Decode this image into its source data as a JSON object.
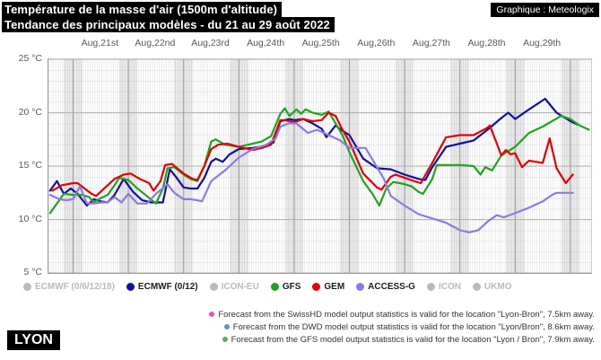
{
  "header": {
    "title_line1": "Température de la masse d'air (1500m d'altitude)",
    "title_line2": "Tendance des principaux modèles - du 21 au 29 août 2022",
    "badge": "Graphique : Meteologix"
  },
  "location_badge": "LYON",
  "legend": [
    {
      "label": "ECMWF (0/6/12/18)",
      "color": "#b9b9c2",
      "active": false
    },
    {
      "label": "ECMWF (0/12)",
      "color": "#11119e",
      "active": true
    },
    {
      "label": "ICON-EU",
      "color": "#b9b9c2",
      "active": false
    },
    {
      "label": "GFS",
      "color": "#1ea51e",
      "active": true
    },
    {
      "label": "GEM",
      "color": "#e60000",
      "active": true
    },
    {
      "label": "ACCESS-G",
      "color": "#8d79e6",
      "active": true
    },
    {
      "label": "ICON",
      "color": "#b9b9c2",
      "active": false
    },
    {
      "label": "UKMO",
      "color": "#b9b9c2",
      "active": false
    }
  ],
  "footnotes": [
    {
      "bullet_color": "#e455c4",
      "text": "Forecast from the SwissHD model output statistics is valid for the location \"Lyon-Bron\", 7.5km away."
    },
    {
      "bullet_color": "#6b8fc3",
      "text": "Forecast from the DWD model output statistics is valid for the location \"Lyon/Bron\", 8.6km away."
    },
    {
      "bullet_color": "#5aa96b",
      "text": "Forecast from the GFS model output statistics is valid for the location \"Lyon / Bron\", 7.9km away."
    }
  ],
  "chart_data": {
    "type": "line",
    "title": "Température de la masse d'air (1500m d'altitude) - Tendance des principaux modèles - du 21 au 29 août 2022",
    "x_unit": "hours since Aug 21 00:00",
    "t_range": [
      -10.7,
      225.0
    ],
    "ylim": [
      5,
      25
    ],
    "grid": "on",
    "legend_position": "bottom",
    "night_band_halfwidth_hours": 4,
    "day_label_noons": [
      12,
      36,
      60,
      84,
      108,
      132,
      156,
      180,
      204
    ],
    "day_labels": [
      "Aug,21st",
      "Aug,22nd",
      "Aug,23rd",
      "Aug,24th",
      "Aug,25th",
      "Aug,26th",
      "Aug,27th",
      "Aug,28th",
      "Aug,29th"
    ],
    "ytick_values": [
      25,
      20,
      15,
      10,
      5
    ],
    "ytick_labels": [
      "25 °C",
      "20 °C",
      "15 °C",
      "10 °C",
      "5 °C"
    ],
    "series": [
      {
        "name": "ECMWF (0/12)",
        "color": "#11119e",
        "points": [
          [
            -10,
            12.7
          ],
          [
            -7,
            13.6
          ],
          [
            -4,
            12.4
          ],
          [
            -1,
            12.9
          ],
          [
            2,
            12.4
          ],
          [
            6,
            11.3
          ],
          [
            9,
            11.9
          ],
          [
            12,
            11.7
          ],
          [
            15,
            11.6
          ],
          [
            18,
            12.3
          ],
          [
            22,
            13.8
          ],
          [
            26,
            12.6
          ],
          [
            30,
            11.8
          ],
          [
            34,
            11.6
          ],
          [
            39,
            11.6
          ],
          [
            42,
            14.7
          ],
          [
            45,
            13.9
          ],
          [
            48,
            13.0
          ],
          [
            51,
            12.9
          ],
          [
            54,
            12.9
          ],
          [
            57,
            13.9
          ],
          [
            60,
            15.4
          ],
          [
            62,
            15.7
          ],
          [
            65,
            15.4
          ],
          [
            68,
            16.1
          ],
          [
            72,
            16.6
          ],
          [
            78,
            16.7
          ],
          [
            84,
            16.9
          ],
          [
            87,
            17.2
          ],
          [
            90,
            19.2
          ],
          [
            94,
            19.4
          ],
          [
            96,
            19.3
          ],
          [
            100,
            19.4
          ],
          [
            104,
            19.0
          ],
          [
            108,
            18.5
          ],
          [
            110,
            17.7
          ],
          [
            114,
            18.8
          ],
          [
            117,
            18.3
          ],
          [
            120,
            17.9
          ],
          [
            126,
            15.7
          ],
          [
            132,
            14.8
          ],
          [
            138,
            14.7
          ],
          [
            144,
            14.2
          ],
          [
            150,
            13.8
          ],
          [
            153,
            13.7
          ],
          [
            156,
            14.9
          ],
          [
            162,
            16.8
          ],
          [
            168,
            17.1
          ],
          [
            174,
            17.4
          ],
          [
            180,
            18.4
          ],
          [
            186,
            19.5
          ],
          [
            189,
            20.0
          ],
          [
            192,
            19.4
          ],
          [
            198,
            20.3
          ],
          [
            205,
            21.3
          ],
          [
            210,
            20.0
          ],
          [
            216,
            19.2
          ],
          [
            219,
            18.9
          ]
        ]
      },
      {
        "name": "GFS",
        "color": "#1ea51e",
        "points": [
          [
            -10,
            10.6
          ],
          [
            -7,
            11.5
          ],
          [
            -4,
            12.4
          ],
          [
            0,
            12.3
          ],
          [
            4,
            12.3
          ],
          [
            7,
            12.1
          ],
          [
            9,
            11.6
          ],
          [
            12,
            12.0
          ],
          [
            15,
            12.3
          ],
          [
            18,
            13.2
          ],
          [
            20,
            13.9
          ],
          [
            24,
            13.7
          ],
          [
            28,
            12.9
          ],
          [
            32,
            12.2
          ],
          [
            36,
            11.5
          ],
          [
            39,
            12.9
          ],
          [
            41,
            14.8
          ],
          [
            44,
            14.9
          ],
          [
            48,
            14.2
          ],
          [
            51,
            13.8
          ],
          [
            54,
            13.6
          ],
          [
            57,
            15.0
          ],
          [
            60,
            17.3
          ],
          [
            62,
            17.5
          ],
          [
            66,
            17.0
          ],
          [
            72,
            16.8
          ],
          [
            76,
            17.0
          ],
          [
            82,
            17.3
          ],
          [
            86,
            17.8
          ],
          [
            90,
            19.9
          ],
          [
            92,
            20.4
          ],
          [
            94,
            19.7
          ],
          [
            97,
            20.3
          ],
          [
            99,
            19.9
          ],
          [
            101,
            20.3
          ],
          [
            104,
            20.0
          ],
          [
            108,
            19.8
          ],
          [
            111,
            20.1
          ],
          [
            114,
            19.0
          ],
          [
            117,
            17.9
          ],
          [
            120,
            16.3
          ],
          [
            126,
            13.6
          ],
          [
            130,
            12.4
          ],
          [
            133,
            11.3
          ],
          [
            136,
            12.9
          ],
          [
            139,
            13.5
          ],
          [
            142,
            13.4
          ],
          [
            144,
            13.3
          ],
          [
            147,
            13.1
          ],
          [
            150,
            12.6
          ],
          [
            152,
            12.4
          ],
          [
            156,
            13.8
          ],
          [
            158,
            15.1
          ],
          [
            162,
            15.1
          ],
          [
            168,
            15.1
          ],
          [
            174,
            15.0
          ],
          [
            177,
            14.2
          ],
          [
            179,
            14.9
          ],
          [
            182,
            14.6
          ],
          [
            186,
            16.0
          ],
          [
            192,
            16.8
          ],
          [
            198,
            18.1
          ],
          [
            204,
            18.7
          ],
          [
            208,
            19.2
          ],
          [
            212,
            19.7
          ],
          [
            216,
            19.4
          ],
          [
            220,
            18.8
          ],
          [
            224,
            18.4
          ]
        ]
      },
      {
        "name": "GEM",
        "color": "#e60000",
        "points": [
          [
            -9,
            12.7
          ],
          [
            -5,
            13.2
          ],
          [
            0,
            13.4
          ],
          [
            2,
            13.4
          ],
          [
            5,
            12.9
          ],
          [
            8,
            12.4
          ],
          [
            10,
            12.2
          ],
          [
            14,
            13.0
          ],
          [
            18,
            13.8
          ],
          [
            22,
            14.2
          ],
          [
            25,
            14.3
          ],
          [
            29,
            13.8
          ],
          [
            33,
            13.4
          ],
          [
            35,
            12.7
          ],
          [
            38,
            13.6
          ],
          [
            40,
            15.1
          ],
          [
            43,
            15.2
          ],
          [
            48,
            14.3
          ],
          [
            52,
            13.8
          ],
          [
            54,
            13.7
          ],
          [
            57,
            15.0
          ],
          [
            60,
            16.6
          ],
          [
            63,
            17.0
          ],
          [
            67,
            17.1
          ],
          [
            72,
            16.8
          ],
          [
            78,
            16.5
          ],
          [
            82,
            16.7
          ],
          [
            86,
            17.0
          ],
          [
            90,
            19.3
          ],
          [
            92,
            19.3
          ],
          [
            96,
            19.1
          ],
          [
            100,
            19.4
          ],
          [
            104,
            19.2
          ],
          [
            108,
            19.3
          ],
          [
            111,
            20.0
          ],
          [
            114,
            19.7
          ],
          [
            117,
            18.4
          ],
          [
            120,
            17.3
          ],
          [
            126,
            14.3
          ],
          [
            132,
            13.0
          ],
          [
            134,
            12.8
          ],
          [
            138,
            14.0
          ],
          [
            140,
            14.2
          ],
          [
            144,
            13.9
          ],
          [
            148,
            13.6
          ],
          [
            151,
            13.4
          ],
          [
            156,
            15.3
          ],
          [
            162,
            17.7
          ],
          [
            168,
            17.9
          ],
          [
            174,
            17.9
          ],
          [
            180,
            18.6
          ],
          [
            181,
            18.8
          ],
          [
            186,
            16.0
          ],
          [
            188,
            16.5
          ],
          [
            190,
            16.1
          ],
          [
            192,
            16.2
          ],
          [
            195,
            14.9
          ],
          [
            198,
            15.5
          ],
          [
            204,
            15.3
          ],
          [
            207,
            17.6
          ],
          [
            210,
            14.8
          ],
          [
            214,
            13.4
          ],
          [
            217,
            14.2
          ]
        ]
      },
      {
        "name": "ACCESS-G",
        "color": "#8d79e6",
        "points": [
          [
            -10,
            12.3
          ],
          [
            -6,
            11.9
          ],
          [
            -3,
            11.8
          ],
          [
            0,
            11.9
          ],
          [
            3,
            13.1
          ],
          [
            6,
            11.5
          ],
          [
            9,
            11.5
          ],
          [
            12,
            11.6
          ],
          [
            15,
            11.6
          ],
          [
            18,
            12.1
          ],
          [
            21,
            11.6
          ],
          [
            24,
            12.4
          ],
          [
            28,
            11.5
          ],
          [
            32,
            11.5
          ],
          [
            36,
            12.4
          ],
          [
            41,
            13.3
          ],
          [
            44,
            12.5
          ],
          [
            48,
            11.9
          ],
          [
            51,
            11.9
          ],
          [
            54,
            11.8
          ],
          [
            56,
            11.7
          ],
          [
            60,
            13.6
          ],
          [
            66,
            14.6
          ],
          [
            72,
            15.8
          ],
          [
            78,
            16.6
          ],
          [
            84,
            17.0
          ],
          [
            88,
            17.6
          ],
          [
            90,
            18.7
          ],
          [
            94,
            19.0
          ],
          [
            97,
            19.0
          ],
          [
            102,
            18.1
          ],
          [
            106,
            18.4
          ],
          [
            111,
            17.9
          ],
          [
            116,
            17.4
          ],
          [
            120,
            16.7
          ],
          [
            127,
            16.7
          ],
          [
            132,
            14.9
          ],
          [
            135,
            13.8
          ],
          [
            138,
            12.2
          ],
          [
            144,
            11.3
          ],
          [
            150,
            10.5
          ],
          [
            156,
            10.1
          ],
          [
            162,
            9.7
          ],
          [
            168,
            9.0
          ],
          [
            172,
            8.8
          ],
          [
            176,
            9.0
          ],
          [
            180,
            9.8
          ],
          [
            184,
            10.4
          ],
          [
            187,
            10.2
          ],
          [
            192,
            10.6
          ],
          [
            198,
            11.1
          ],
          [
            204,
            11.7
          ],
          [
            208,
            12.3
          ],
          [
            210,
            12.5
          ],
          [
            217,
            12.5
          ]
        ]
      }
    ]
  }
}
